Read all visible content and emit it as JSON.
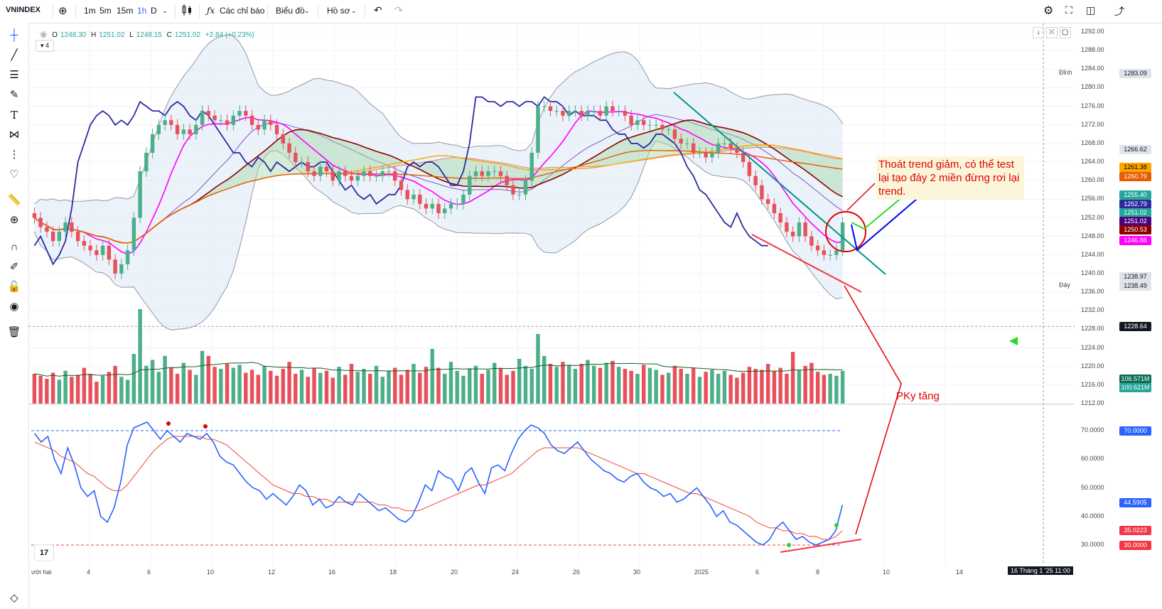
{
  "toolbar": {
    "symbol": "VNINDEX",
    "intervals": [
      "1m",
      "5m",
      "15m",
      "1h",
      "D"
    ],
    "active_interval": "1h",
    "indicators_label": "Các chỉ báo",
    "chart_label": "Biểu đồ",
    "profile_label": "Hồ sơ"
  },
  "legend": {
    "o": "1248.30",
    "h": "1251.02",
    "l": "1248.15",
    "c": "1251.02",
    "chg": "+2.84 (+0.23%)",
    "collapsed_count": "4"
  },
  "colors": {
    "up": "#26a69a",
    "down": "#ef5350",
    "volume_up": "#4caf8a",
    "volume_down": "#e8505b",
    "rsi": "#2962ff",
    "rsi_ma": "#f44336",
    "bb": "#9598a1",
    "bb_fill": "#dde9f6",
    "kumo_up": "#a5d6a7",
    "kumo_down": "#f8bbd0",
    "tenkan": "#2b2ba0",
    "kijun": "#8b0000",
    "ma1": "#ff00ff",
    "ma2": "#ffa500",
    "ma3": "#e65c00",
    "trend_teal": "#009688",
    "trend_red": "#f23645"
  },
  "annotations": {
    "text1": "Thoát trend giảm, có thể test lại tạo đáy 2 miền đừng rơi lại trend.",
    "text2": "PKy tăng"
  },
  "chart_data": {
    "type": "candlestick",
    "price_axis_ticks": [
      1292.0,
      1288.0,
      1284.0,
      1280.0,
      1276.0,
      1272.0,
      1268.0,
      1264.0,
      1260.0,
      1256.0,
      1252.0,
      1248.0,
      1244.0,
      1240.0,
      1236.0,
      1232.0,
      1228.0,
      1224.0,
      1220.0,
      1216.0,
      1212.0
    ],
    "rsi_axis_ticks": [
      70.0,
      60.0,
      50.0,
      40.0,
      30.0
    ],
    "time_axis": [
      "ười hai",
      "4",
      "6",
      "10",
      "12",
      "16",
      "18",
      "20",
      "24",
      "26",
      "30",
      "2025",
      "6",
      "8",
      "10",
      "14"
    ],
    "crosshair_time": "16 Tháng 1 '25   11:00",
    "crosshair_price": "1228.64",
    "price_tags": [
      {
        "label": "Đỉnh",
        "value": "1283.09",
        "color": "#e0e3eb",
        "text": "#131722"
      },
      {
        "label": "",
        "value": "1266.62",
        "color": "#e0e3eb",
        "text": "#131722"
      },
      {
        "label": "",
        "value": "1261.38",
        "color": "#ffa500",
        "text": "#000000"
      },
      {
        "label": "",
        "value": "1260.79",
        "color": "#e65c00",
        "text": "#ffffff"
      },
      {
        "label": "",
        "value": "1255.40",
        "color": "#26a69a",
        "text": "#ffffff"
      },
      {
        "label": "",
        "value": "1252.79",
        "color": "#2b2ba0",
        "text": "#ffffff"
      },
      {
        "label": "",
        "value": "1251.02",
        "color": "#26a69a",
        "text": "#ffffff"
      },
      {
        "label": "",
        "value": "1251.02",
        "color": "#4b0082",
        "text": "#ffffff"
      },
      {
        "label": "",
        "value": "1250.53",
        "color": "#8b0000",
        "text": "#ffffff"
      },
      {
        "label": "",
        "value": "1246.88",
        "color": "#ff00ff",
        "text": "#ffffff"
      },
      {
        "label": "",
        "value": "1238.97",
        "color": "#e0e3eb",
        "text": "#131722"
      },
      {
        "label": "Đáy",
        "value": "1238.49",
        "color": "#e0e3eb",
        "text": "#131722"
      },
      {
        "label": "",
        "value": "106.571M",
        "color": "#0f6b4f",
        "text": "#ffffff"
      },
      {
        "label": "",
        "value": "100.621M",
        "color": "#26a69a",
        "text": "#ffffff"
      },
      {
        "label": "",
        "value": "70.0000",
        "color": "#2962ff",
        "text": "#ffffff"
      },
      {
        "label": "",
        "value": "44.5905",
        "color": "#2962ff",
        "text": "#ffffff"
      },
      {
        "label": "",
        "value": "35.0223",
        "color": "#f23645",
        "text": "#ffffff"
      },
      {
        "label": "",
        "value": "30.0000",
        "color": "#f23645",
        "text": "#ffffff"
      }
    ],
    "closes": [
      1252,
      1250,
      1249,
      1247,
      1249,
      1251,
      1249,
      1247,
      1246,
      1245,
      1244,
      1246,
      1243,
      1240,
      1242,
      1245,
      1252,
      1262,
      1266,
      1270,
      1272,
      1273,
      1272,
      1270,
      1271,
      1270,
      1272,
      1275,
      1274,
      1273,
      1273,
      1272,
      1274,
      1275,
      1274,
      1272,
      1271,
      1273,
      1272,
      1270,
      1268,
      1266,
      1264,
      1264,
      1262,
      1261,
      1263,
      1262,
      1260,
      1262,
      1261,
      1260,
      1261,
      1262,
      1261,
      1261,
      1262,
      1262,
      1260,
      1258,
      1256,
      1257,
      1255,
      1254,
      1255,
      1253,
      1254,
      1255,
      1255,
      1257,
      1261,
      1262,
      1261,
      1262,
      1262,
      1261,
      1259,
      1257,
      1257,
      1260,
      1266,
      1276,
      1276,
      1275,
      1275,
      1274,
      1275,
      1275,
      1274,
      1275,
      1275,
      1274,
      1276,
      1275,
      1275,
      1274,
      1272,
      1273,
      1272,
      1272,
      1272,
      1271,
      1271,
      1269,
      1268,
      1268,
      1266,
      1266,
      1265,
      1266,
      1268,
      1268,
      1267,
      1266,
      1264,
      1261,
      1259,
      1256,
      1255,
      1253,
      1251,
      1249,
      1248,
      1251,
      1248,
      1246,
      1245,
      1244,
      1244,
      1245,
      1251
    ],
    "volumes": [
      30,
      28,
      25,
      31,
      24,
      33,
      27,
      29,
      36,
      30,
      22,
      28,
      32,
      38,
      27,
      24,
      50,
      95,
      38,
      44,
      32,
      48,
      36,
      30,
      41,
      34,
      29,
      53,
      48,
      37,
      35,
      40,
      36,
      39,
      31,
      34,
      29,
      38,
      33,
      28,
      35,
      42,
      30,
      34,
      27,
      36,
      31,
      33,
      26,
      37,
      29,
      40,
      32,
      35,
      30,
      38,
      27,
      33,
      36,
      29,
      34,
      40,
      31,
      37,
      55,
      36,
      30,
      42,
      33,
      28,
      35,
      38,
      30,
      34,
      41,
      36,
      29,
      33,
      45,
      38,
      35,
      70,
      48,
      40,
      37,
      42,
      39,
      35,
      40,
      44,
      38,
      36,
      41,
      43,
      37,
      35,
      33,
      30,
      39,
      36,
      34,
      29,
      31,
      38,
      35,
      30,
      36,
      27,
      32,
      34,
      30,
      33,
      29,
      26,
      31,
      37,
      35,
      34,
      40,
      33,
      36,
      30,
      52,
      34,
      38,
      41,
      32,
      29,
      30,
      28,
      33
    ],
    "rsi": [
      69,
      66,
      68,
      60,
      55,
      64,
      58,
      50,
      47,
      49,
      40,
      38,
      43,
      52,
      65,
      71,
      72,
      73,
      70,
      67,
      70,
      68,
      66,
      69,
      68,
      67,
      69,
      66,
      61,
      59,
      58,
      55,
      52,
      50,
      49,
      46,
      48,
      46,
      44,
      47,
      51,
      49,
      44,
      46,
      43,
      44,
      47,
      45,
      44,
      48,
      46,
      44,
      42,
      43,
      41,
      39,
      38,
      40,
      45,
      51,
      49,
      56,
      54,
      53,
      49,
      55,
      57,
      52,
      48,
      57,
      58,
      56,
      62,
      67,
      70,
      72,
      71,
      69,
      65,
      63,
      62,
      64,
      66,
      63,
      60,
      58,
      56,
      55,
      53,
      52,
      54,
      55,
      52,
      50,
      49,
      47,
      48,
      45,
      46,
      48,
      50,
      47,
      44,
      40,
      42,
      38,
      37,
      35,
      33,
      31,
      30,
      32,
      36,
      38,
      35,
      32,
      33,
      31,
      30,
      31,
      32,
      35,
      44
    ],
    "rsi_ma": [
      66,
      65,
      64,
      63,
      61,
      60,
      59,
      57,
      55,
      54,
      52,
      50,
      49,
      49,
      51,
      54,
      57,
      60,
      63,
      65,
      67,
      68,
      68,
      68,
      68,
      68,
      67,
      67,
      66,
      65,
      63,
      61,
      59,
      57,
      55,
      53,
      51,
      50,
      49,
      48,
      48,
      47,
      47,
      46,
      46,
      45,
      45,
      45,
      45,
      45,
      45,
      45,
      44,
      44,
      43,
      43,
      42,
      42,
      42,
      43,
      44,
      45,
      46,
      47,
      48,
      49,
      50,
      51,
      51,
      52,
      53,
      54,
      55,
      57,
      59,
      61,
      63,
      64,
      64,
      64,
      64,
      64,
      64,
      63,
      62,
      61,
      60,
      59,
      58,
      57,
      56,
      55,
      55,
      54,
      53,
      52,
      51,
      50,
      49,
      48,
      48,
      47,
      46,
      45,
      44,
      43,
      42,
      41,
      40,
      38,
      37,
      36,
      36,
      35,
      35,
      34,
      34,
      33,
      33,
      32,
      32,
      33,
      35
    ]
  }
}
